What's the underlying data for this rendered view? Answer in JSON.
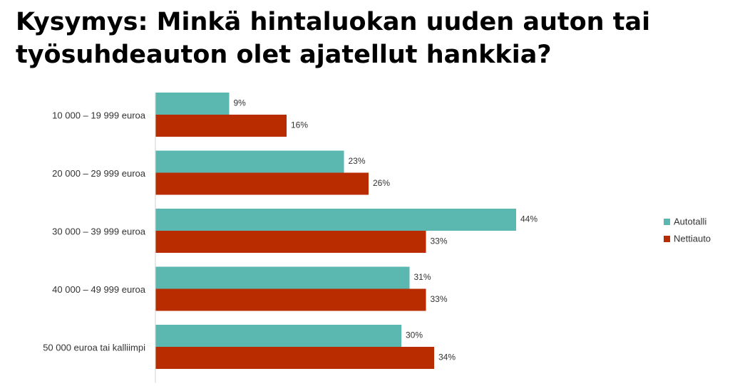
{
  "title": {
    "line1": "Kysymys: Minkä hintaluokan uuden auton tai",
    "line2": "työsuhdeauton olet ajatellut hankkia?"
  },
  "chart_data": {
    "type": "bar",
    "orientation": "horizontal",
    "categories": [
      "10 000 – 19 999 euroa",
      "20 000 – 29 999 euroa",
      "30 000 – 39 999 euroa",
      "40 000 – 49 999 euroa",
      "50 000 euroa tai kalliimpi"
    ],
    "series": [
      {
        "name": "Autotalli",
        "color": "#5BB8B1",
        "values": [
          9,
          23,
          44,
          31,
          30
        ],
        "labels": [
          "9%",
          "23%",
          "44%",
          "31%",
          "30%"
        ]
      },
      {
        "name": "Nettiauto",
        "color": "#B82C00",
        "values": [
          16,
          26,
          33,
          33,
          34
        ],
        "labels": [
          "16%",
          "26%",
          "33%",
          "33%",
          "34%"
        ]
      }
    ],
    "xlim": [
      0,
      50
    ],
    "unit": "%",
    "grid": false,
    "legend": "right"
  }
}
